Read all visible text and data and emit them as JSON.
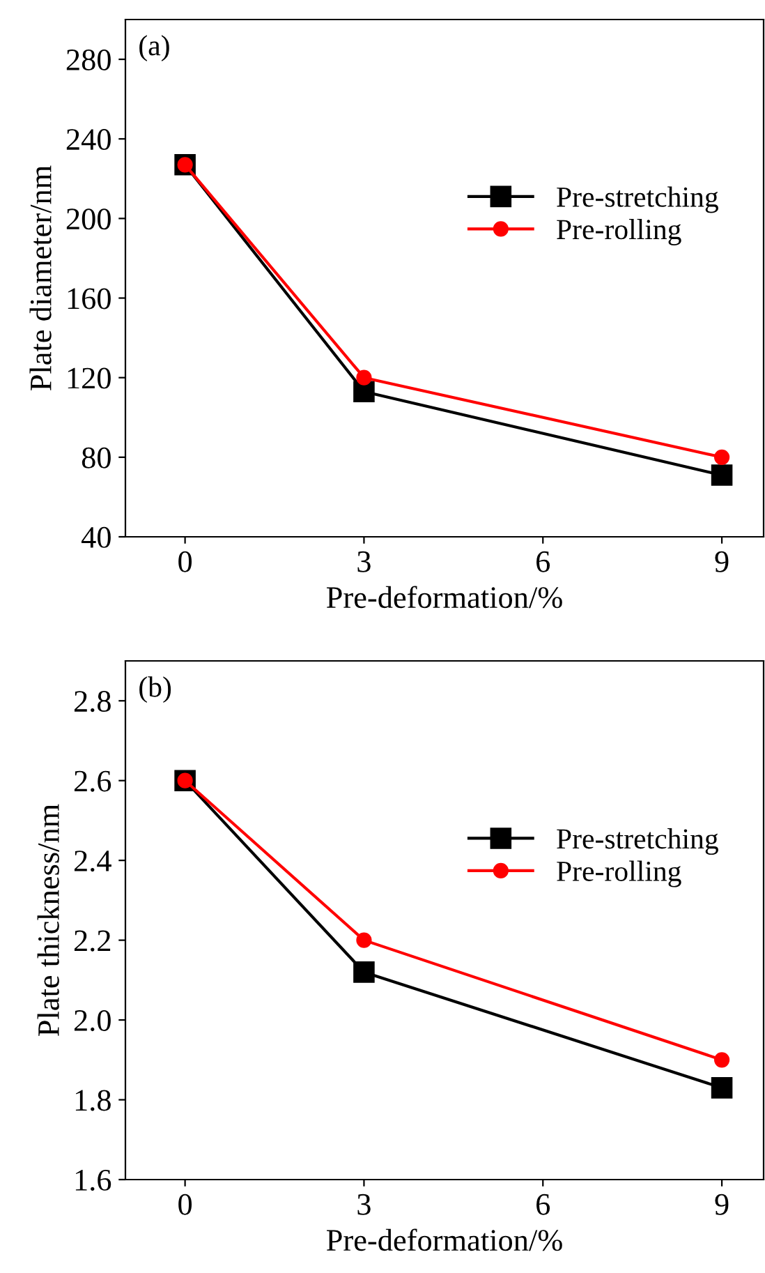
{
  "chart_data": [
    {
      "type": "line",
      "xlabel": "Pre-deformation/%",
      "ylabel": "Plate diameter/nm",
      "annotations": [
        "(a)"
      ],
      "x": [
        0,
        3,
        9
      ],
      "xlim": [
        -1,
        9.7
      ],
      "xticks": [
        0,
        3,
        6,
        9
      ],
      "ylim": [
        40,
        300
      ],
      "yticks": [
        40,
        80,
        120,
        160,
        200,
        240,
        280
      ],
      "legend": "right",
      "grid": false,
      "series": [
        {
          "name": "Pre-stretching",
          "color": "#000000",
          "marker": "square",
          "values": [
            227,
            113,
            71
          ]
        },
        {
          "name": "Pre-rolling",
          "color": "#ff0000",
          "marker": "circle",
          "values": [
            227,
            120,
            80
          ]
        }
      ]
    },
    {
      "type": "line",
      "xlabel": "Pre-deformation/%",
      "ylabel": "Plate thickness/nm",
      "annotations": [
        "(b)"
      ],
      "x": [
        0,
        3,
        9
      ],
      "xlim": [
        -1,
        9.7
      ],
      "xticks": [
        0,
        3,
        6,
        9
      ],
      "ylim": [
        1.6,
        2.9
      ],
      "yticks": [
        {
          "value": 1.6,
          "label": "1.6"
        },
        {
          "value": 1.8,
          "label": "1.8"
        },
        {
          "value": 2.0,
          "label": "2.0"
        },
        {
          "value": 2.2,
          "label": "2.2"
        },
        {
          "value": 2.4,
          "label": "2.4"
        },
        {
          "value": 2.6,
          "label": "2.6"
        },
        {
          "value": 2.8,
          "label": "2.8"
        }
      ],
      "legend": "right",
      "grid": false,
      "series": [
        {
          "name": "Pre-stretching",
          "color": "#000000",
          "marker": "square",
          "values": [
            2.6,
            2.12,
            1.83
          ]
        },
        {
          "name": "Pre-rolling",
          "color": "#ff0000",
          "marker": "circle",
          "values": [
            2.6,
            2.2,
            1.9
          ]
        }
      ]
    }
  ]
}
